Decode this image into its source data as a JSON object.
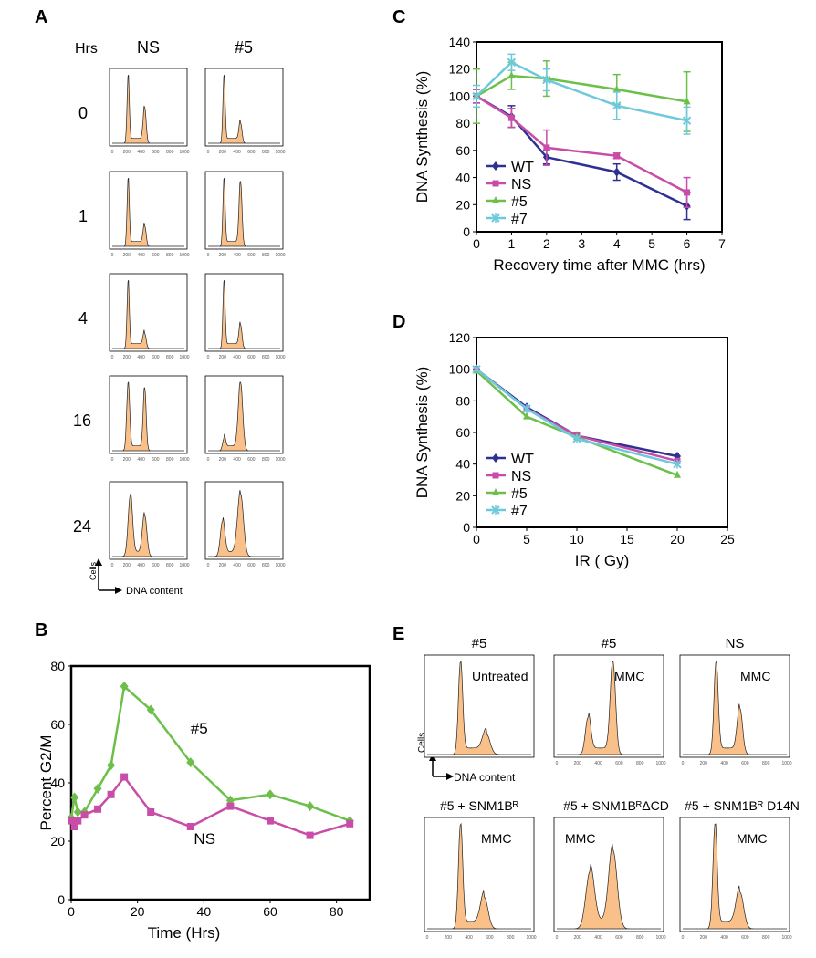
{
  "panel_labels": {
    "A": "A",
    "B": "B",
    "C": "C",
    "D": "D",
    "E": "E"
  },
  "panelA": {
    "col_hrs": "Hrs",
    "col_ns": "NS",
    "col_5": "#5",
    "rows": [
      "0",
      "1",
      "4",
      "16",
      "24"
    ],
    "tick_labels": [
      "0",
      "200",
      "400",
      "600",
      "800",
      "1000"
    ],
    "y_axis_label": "Cells",
    "x_axis_label": "DNA content",
    "fill_color": "#f9c08a"
  },
  "panelE": {
    "top_titles": [
      "#5",
      "#5",
      "NS"
    ],
    "top_inner": [
      "Untreated",
      "MMC",
      "MMC"
    ],
    "bottom_titles": [
      "#5 + SNM1Bᴿ",
      "#5 + SNM1BᴿΔCD",
      "#5 + SNM1Bᴿ D14N"
    ],
    "bottom_inner": [
      "MMC",
      "MMC",
      "MMC"
    ],
    "tick_labels": [
      "0",
      "200",
      "400",
      "600",
      "800",
      "1000"
    ],
    "y_axis_label": "Cells",
    "x_axis_label": "DNA content"
  },
  "chart_data": [
    {
      "id": "B",
      "type": "line",
      "xlabel": "Time (Hrs)",
      "ylabel": "Percent G2/M",
      "xlim": [
        0,
        90
      ],
      "ylim": [
        0,
        80
      ],
      "x_ticks": [
        0,
        20,
        40,
        60,
        80
      ],
      "y_ticks": [
        0,
        20,
        40,
        60,
        80
      ],
      "series": [
        {
          "name": "#5",
          "color": "#6cc04a",
          "marker": "diamond",
          "x": [
            0,
            1,
            2,
            4,
            8,
            12,
            16,
            24,
            36,
            48,
            60,
            72,
            84
          ],
          "y": [
            28,
            35,
            30,
            30,
            38,
            46,
            73,
            65,
            47,
            34,
            36,
            32,
            27
          ]
        },
        {
          "name": "NS",
          "color": "#c94ca8",
          "marker": "square",
          "x": [
            0,
            1,
            2,
            4,
            8,
            12,
            16,
            24,
            36,
            48,
            60,
            72,
            84
          ],
          "y": [
            27,
            25,
            27,
            29,
            31,
            36,
            42,
            30,
            25,
            32,
            27,
            22,
            26
          ]
        }
      ],
      "annotations": [
        "#5",
        "NS"
      ]
    },
    {
      "id": "C",
      "type": "line",
      "xlabel": "Recovery time after MMC (hrs)",
      "ylabel": "DNA Synthesis (%)",
      "xlim": [
        0,
        7
      ],
      "ylim": [
        0,
        140
      ],
      "x_ticks": [
        0,
        1,
        2,
        3,
        4,
        5,
        6,
        7
      ],
      "y_ticks": [
        0,
        20,
        40,
        60,
        80,
        100,
        120,
        140
      ],
      "legend": "left-middle",
      "series": [
        {
          "name": "WT",
          "color": "#2e3192",
          "marker": "diamond",
          "x": [
            0,
            1,
            2,
            4,
            6
          ],
          "y": [
            100,
            85,
            55,
            44,
            19
          ],
          "err": [
            5,
            8,
            5,
            6,
            10
          ]
        },
        {
          "name": "NS",
          "color": "#c94ca8",
          "marker": "square",
          "x": [
            0,
            1,
            2,
            4,
            6
          ],
          "y": [
            100,
            84,
            62,
            56,
            29
          ],
          "err": [
            5,
            7,
            13,
            2,
            11
          ]
        },
        {
          "name": "#5",
          "color": "#6cc04a",
          "marker": "triangle",
          "x": [
            0,
            1,
            2,
            4,
            6
          ],
          "y": [
            100,
            115,
            113,
            105,
            96
          ],
          "err": [
            20,
            10,
            13,
            11,
            22
          ]
        },
        {
          "name": "#7",
          "color": "#6ec9dd",
          "marker": "x",
          "x": [
            0,
            1,
            2,
            4,
            6
          ],
          "y": [
            100,
            125,
            112,
            93,
            82
          ],
          "err": [
            8,
            6,
            8,
            10,
            10
          ]
        }
      ]
    },
    {
      "id": "D",
      "type": "line",
      "xlabel": "IR ( Gy)",
      "ylabel": "DNA Synthesis (%)",
      "xlim": [
        0,
        25
      ],
      "ylim": [
        0,
        120
      ],
      "x_ticks": [
        0,
        5,
        10,
        15,
        20,
        25
      ],
      "y_ticks": [
        0,
        20,
        40,
        60,
        80,
        100,
        120
      ],
      "legend": "left-middle",
      "series": [
        {
          "name": "WT",
          "color": "#2e3192",
          "marker": "diamond",
          "x": [
            0,
            5,
            10,
            20
          ],
          "y": [
            100,
            76,
            58,
            45
          ]
        },
        {
          "name": "NS",
          "color": "#c94ca8",
          "marker": "square",
          "x": [
            0,
            5,
            10,
            20
          ],
          "y": [
            100,
            75,
            58,
            42
          ]
        },
        {
          "name": "#5",
          "color": "#6cc04a",
          "marker": "triangle",
          "x": [
            0,
            5,
            10,
            20
          ],
          "y": [
            99,
            70,
            57,
            33
          ]
        },
        {
          "name": "#7",
          "color": "#6ec9dd",
          "marker": "x",
          "x": [
            0,
            5,
            10,
            20
          ],
          "y": [
            100,
            75,
            56,
            40
          ]
        }
      ]
    }
  ]
}
